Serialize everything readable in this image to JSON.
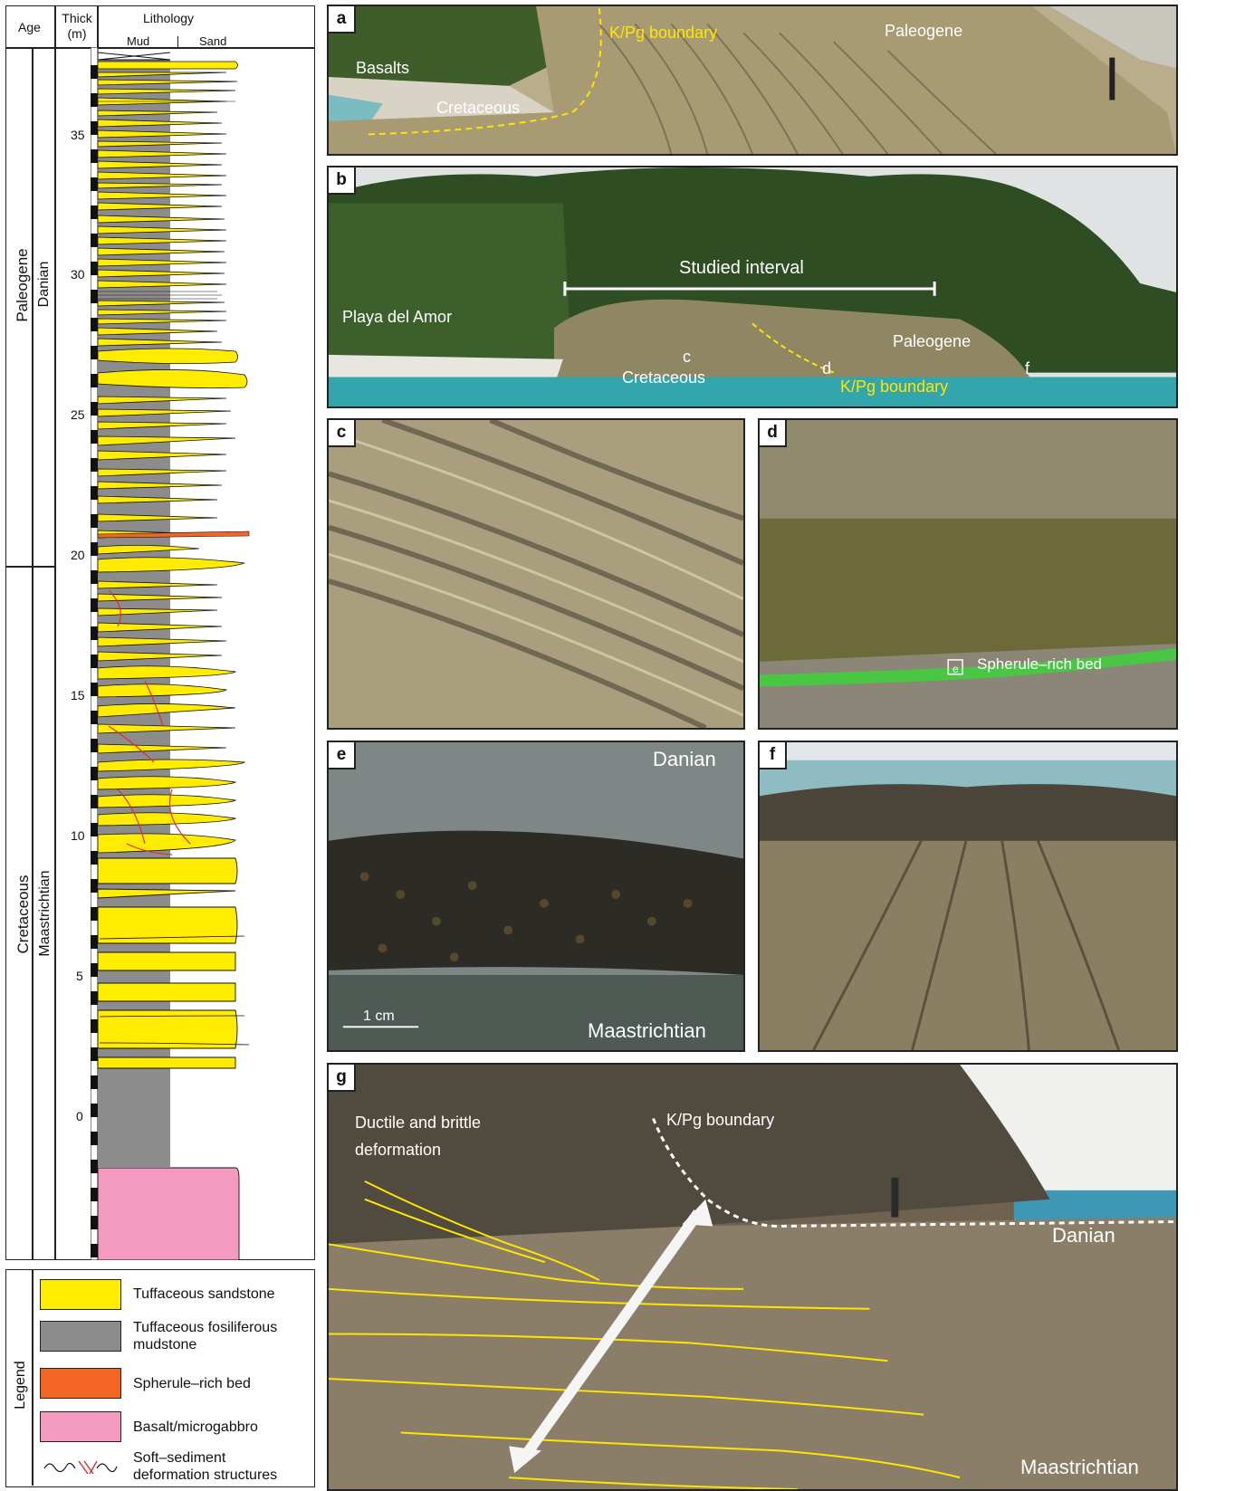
{
  "column": {
    "header_age": "Age",
    "header_thick": "Thick\n(m)",
    "header_lithology": "Lithology",
    "header_mud": "Mud",
    "header_sand": "Sand",
    "era_upper": "Paleogene",
    "stage_upper": "Danian",
    "era_lower": "Cretaceous",
    "stage_lower": "Maastrichtian",
    "ticks": [
      "35",
      "30",
      "25",
      "20",
      "15",
      "10",
      "5",
      "0"
    ]
  },
  "legend": {
    "title": "Legend",
    "items": [
      {
        "label": "Tuffaceous sandstone",
        "color": "#ffec00"
      },
      {
        "label": "Tuffaceous fosiliferous mudstone",
        "color": "#8c8c8c"
      },
      {
        "label": "Spherule–rich bed",
        "color": "#f26522"
      },
      {
        "label": "Basalt/microgabbro",
        "color": "#f49ac1"
      },
      {
        "label": "Soft–sediment deformation structures",
        "color": ""
      }
    ]
  },
  "panels": {
    "a": {
      "label": "a",
      "kpg": "K/Pg boundary",
      "paleogene": "Paleogene",
      "basalts": "Basalts",
      "cretaceous": "Cretaceous"
    },
    "b": {
      "label": "b",
      "studied": "Studied interval",
      "playa": "Playa del Amor",
      "paleogene": "Paleogene",
      "c": "c",
      "d": "d",
      "f": "f",
      "cretaceous": "Cretaceous",
      "kpg": "K/Pg boundary"
    },
    "c": {
      "label": "c"
    },
    "d": {
      "label": "d",
      "spherule": "Spherule–rich bed",
      "e": "e"
    },
    "e": {
      "label": "e",
      "danian": "Danian",
      "maastrichtian": "Maastrichtian",
      "scale": "1 cm"
    },
    "f": {
      "label": "f"
    },
    "g": {
      "label": "g",
      "kpg": "K/Pg boundary",
      "ductile1": "Ductile and brittle",
      "ductile2": "deformation",
      "danian": "Danian",
      "maastrichtian": "Maastrichtian"
    }
  }
}
